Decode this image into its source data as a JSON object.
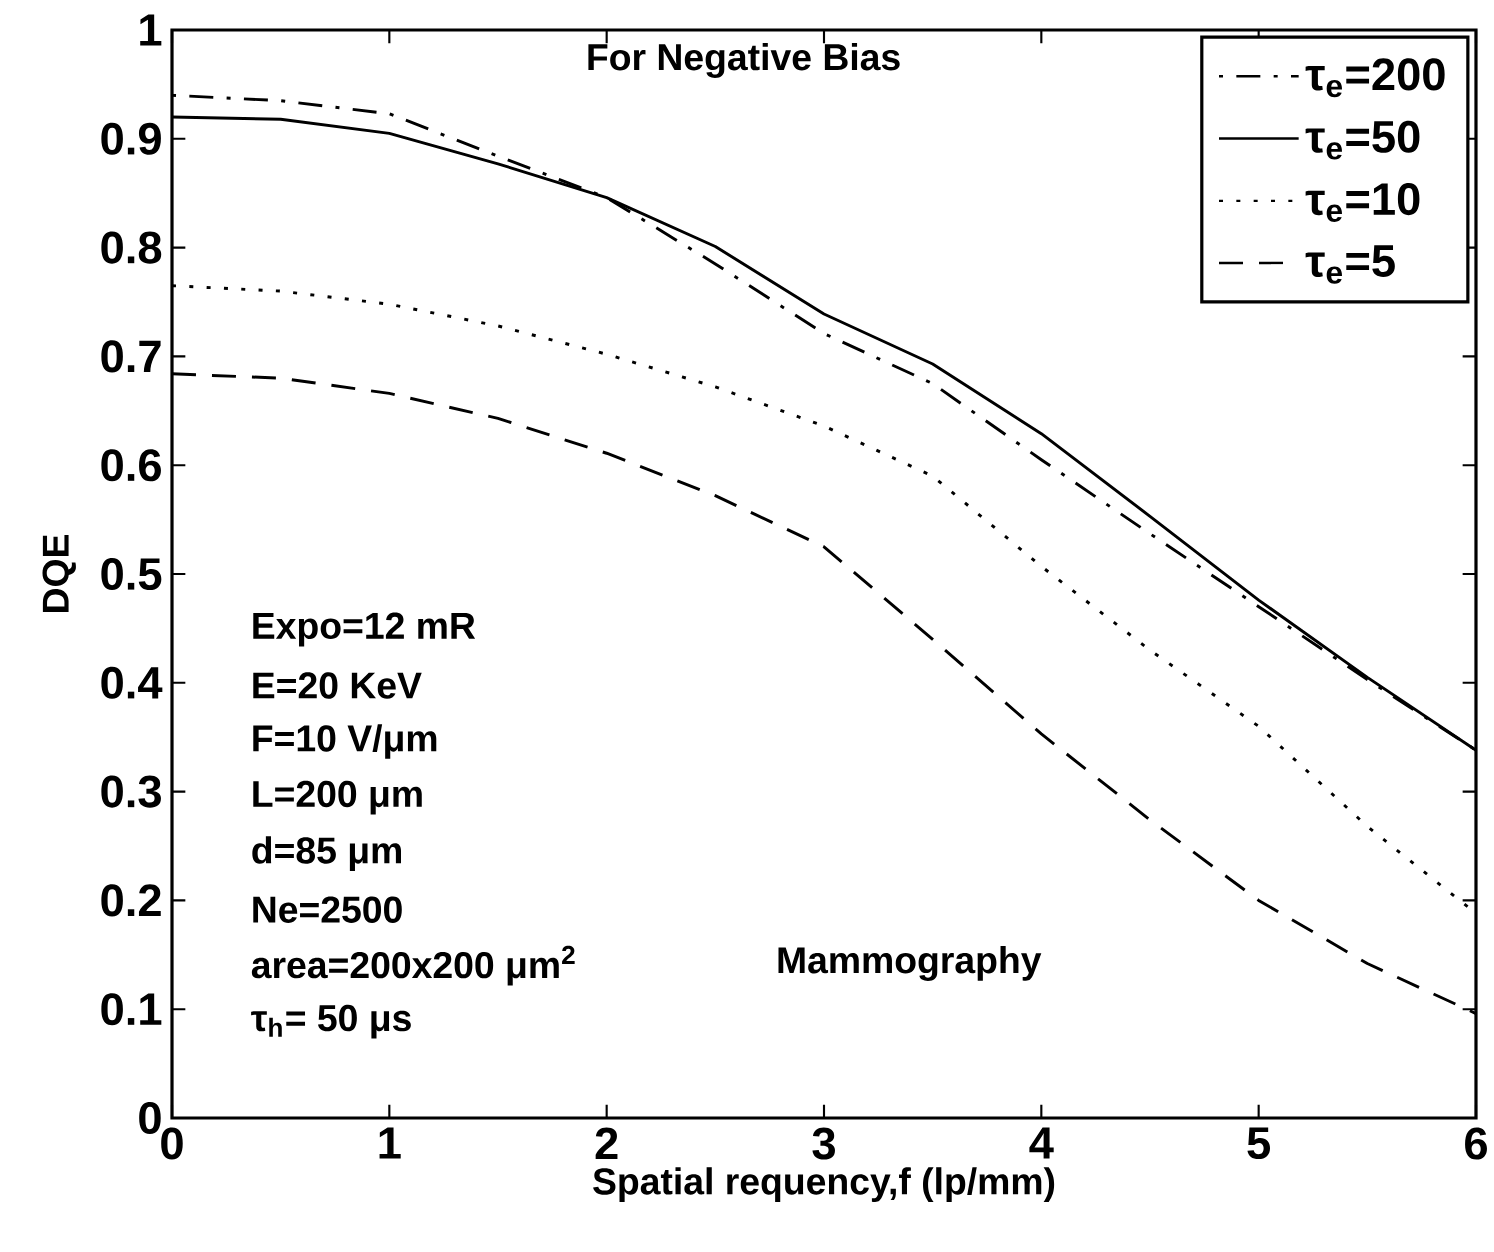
{
  "chart_data": {
    "type": "line",
    "xlabel": "Spatial requency,f (lp/mm)",
    "ylabel": "DQE",
    "x": [
      0,
      0.5,
      1,
      1.5,
      2,
      2.5,
      3,
      3.5,
      4,
      4.5,
      5,
      5.5,
      6
    ],
    "series": [
      {
        "name": "τ$_{e}$=200",
        "color": "#000000",
        "line_style": "dashdot",
        "values": [
          0.94,
          0.935,
          0.923,
          0.884,
          0.846,
          0.785,
          0.721,
          0.675,
          0.605,
          0.537,
          0.47,
          0.403,
          0.338
        ]
      },
      {
        "name": "τ$_{e}$=50",
        "color": "#000000",
        "line_style": "solid",
        "values": [
          0.92,
          0.918,
          0.905,
          0.877,
          0.846,
          0.801,
          0.739,
          0.693,
          0.629,
          0.553,
          0.476,
          0.405,
          0.338
        ]
      },
      {
        "name": "τ$_{e}$=10",
        "color": "#000000",
        "line_style": "dotted",
        "values": [
          0.765,
          0.76,
          0.748,
          0.728,
          0.702,
          0.672,
          0.636,
          0.59,
          0.507,
          0.43,
          0.36,
          0.268,
          0.188
        ]
      },
      {
        "name": "τ$_{e}$=5",
        "color": "#000000",
        "line_style": "dashed",
        "values": [
          0.684,
          0.68,
          0.666,
          0.643,
          0.611,
          0.572,
          0.525,
          0.44,
          0.353,
          0.274,
          0.2,
          0.142,
          0.096
        ]
      }
    ],
    "xlim": [
      0,
      6
    ],
    "ylim": [
      0,
      1
    ],
    "xticks": [
      0,
      1,
      2,
      3,
      4,
      5,
      6
    ],
    "yticks": [
      0,
      0.1,
      0.2,
      0.3,
      0.4,
      0.5,
      0.6,
      0.7,
      0.8,
      0.9,
      1
    ],
    "grid": false,
    "legend": "top right",
    "annotations": [
      "For Negative Bias",
      "Expo=12 mR",
      "E=20 KeV",
      "F=10 V/μm",
      "L=200 μm",
      "d=85 μm",
      "Ne=2500",
      "area=200x200 μm$^{2}$",
      "τ$_{h}$= 50 μs",
      "Mammography"
    ]
  }
}
